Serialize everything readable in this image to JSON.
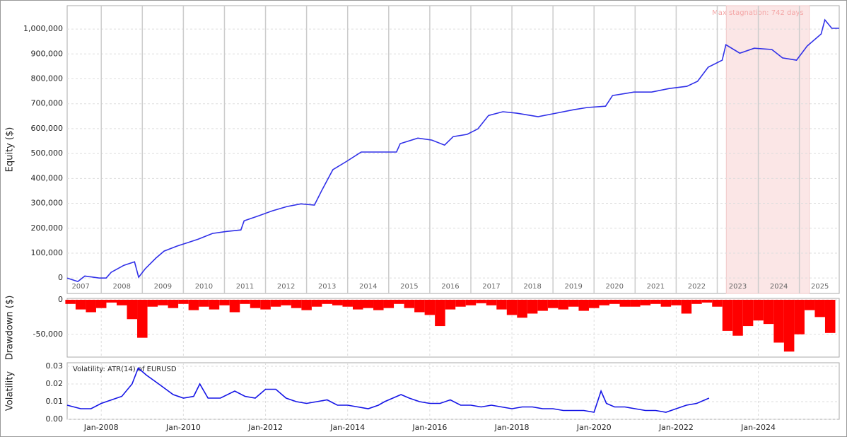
{
  "chart_data": [
    {
      "type": "line",
      "y_label": "Equity ($)",
      "color": "#3030e8",
      "annotation": {
        "text": "Max stagnation: 742 days",
        "start": 2023.22,
        "end": 2025.24,
        "color": "#fbe6e6"
      },
      "xlim": [
        2007.17,
        2025.97
      ],
      "ylim": [
        -62000,
        1094000
      ],
      "yticks": [
        0,
        {
          "value": 100000,
          "label": "100,000"
        },
        {
          "value": 200000,
          "label": "200,000"
        },
        {
          "value": 300000,
          "label": "300,000"
        },
        {
          "value": 400000,
          "label": "400,000"
        },
        {
          "value": 500000,
          "label": "500,000"
        },
        {
          "value": 600000,
          "label": "600,000"
        },
        {
          "value": 700000,
          "label": "700,000"
        },
        {
          "value": 800000,
          "label": "800,000"
        },
        {
          "value": 900000,
          "label": "900,000"
        },
        {
          "value": 1000000,
          "label": "1,000,000"
        }
      ],
      "xticks": [
        {
          "value": 2007.5,
          "label": "2007"
        },
        {
          "value": 2008.5,
          "label": "2008"
        },
        {
          "value": 2009.5,
          "label": "2009"
        },
        {
          "value": 2010.5,
          "label": "2010"
        },
        {
          "value": 2011.5,
          "label": "2011"
        },
        {
          "value": 2012.5,
          "label": "2012"
        },
        {
          "value": 2013.5,
          "label": "2013"
        },
        {
          "value": 2014.5,
          "label": "2014"
        },
        {
          "value": 2015.5,
          "label": "2015"
        },
        {
          "value": 2016.5,
          "label": "2016"
        },
        {
          "value": 2017.5,
          "label": "2017"
        },
        {
          "value": 2018.5,
          "label": "2018"
        },
        {
          "value": 2019.5,
          "label": "2019"
        },
        {
          "value": 2020.5,
          "label": "2020"
        },
        {
          "value": 2021.5,
          "label": "2021"
        },
        {
          "value": 2022.5,
          "label": "2022"
        },
        {
          "value": 2023.5,
          "label": "2023"
        },
        {
          "value": 2024.5,
          "label": "2024"
        },
        {
          "value": 2025.5,
          "label": "2025"
        }
      ],
      "x": [
        2007.17,
        2007.43,
        2007.6,
        2007.95,
        2008.12,
        2008.24,
        2008.55,
        2008.81,
        2008.91,
        2009.07,
        2009.33,
        2009.53,
        2009.84,
        2010.1,
        2010.36,
        2010.71,
        2011.05,
        2011.4,
        2011.48,
        2011.83,
        2012.17,
        2012.52,
        2012.86,
        2013.19,
        2013.38,
        2013.64,
        2013.98,
        2014.33,
        2014.67,
        2015.19,
        2015.28,
        2015.71,
        2016.05,
        2016.36,
        2016.57,
        2016.91,
        2017.17,
        2017.43,
        2017.78,
        2018.12,
        2018.64,
        2019.07,
        2019.5,
        2019.84,
        2020.28,
        2020.45,
        2020.97,
        2021.4,
        2021.83,
        2022.26,
        2022.52,
        2022.78,
        2023.12,
        2023.21,
        2023.55,
        2023.9,
        2024.33,
        2024.59,
        2024.93,
        2025.19,
        2025.53,
        2025.62,
        2025.79,
        2025.97
      ],
      "values": [
        0,
        -14000,
        8000,
        0,
        0,
        23000,
        51000,
        65000,
        3000,
        37000,
        80000,
        108000,
        128000,
        142000,
        156000,
        179000,
        187000,
        193000,
        230000,
        250000,
        270000,
        287000,
        298000,
        293000,
        355000,
        435000,
        469000,
        506000,
        506000,
        506000,
        540000,
        562000,
        554000,
        534000,
        568000,
        577000,
        599000,
        653000,
        668000,
        662000,
        648000,
        662000,
        676000,
        685000,
        690000,
        733000,
        747000,
        747000,
        761000,
        770000,
        790000,
        847000,
        875000,
        937000,
        903000,
        923000,
        918000,
        884000,
        875000,
        932000,
        980000,
        1037000,
        1003000,
        1003000
      ]
    },
    {
      "type": "bar",
      "y_label": "Drawdown ($)",
      "color": "#ff0000",
      "xlim": [
        2007.17,
        2025.97
      ],
      "ylim": [
        -83000,
        2000
      ],
      "yticks": [
        0,
        {
          "value": -50000,
          "label": "-50,000"
        }
      ],
      "x": [
        2007.25,
        2007.5,
        2007.75,
        2008,
        2008.25,
        2008.5,
        2008.75,
        2009,
        2009.25,
        2009.5,
        2009.75,
        2010,
        2010.25,
        2010.5,
        2010.75,
        2011,
        2011.25,
        2011.5,
        2011.75,
        2012,
        2012.25,
        2012.5,
        2012.75,
        2013,
        2013.25,
        2013.5,
        2013.75,
        2014,
        2014.25,
        2014.5,
        2014.75,
        2015,
        2015.25,
        2015.5,
        2015.75,
        2016,
        2016.25,
        2016.5,
        2016.75,
        2017,
        2017.25,
        2017.5,
        2017.75,
        2018,
        2018.25,
        2018.5,
        2018.75,
        2019,
        2019.25,
        2019.5,
        2019.75,
        2020,
        2020.25,
        2020.5,
        2020.75,
        2021,
        2021.25,
        2021.5,
        2021.75,
        2022,
        2022.25,
        2022.5,
        2022.75,
        2023,
        2023.25,
        2023.5,
        2023.75,
        2024,
        2024.25,
        2024.5,
        2024.75,
        2025,
        2025.25,
        2025.5,
        2025.75
      ],
      "values": [
        -6000,
        -14000,
        -18000,
        -12000,
        -4000,
        -8000,
        -28000,
        -55000,
        -10000,
        -8000,
        -12000,
        -6000,
        -15000,
        -10000,
        -14000,
        -8000,
        -18000,
        -6000,
        -12000,
        -14000,
        -10000,
        -8000,
        -12000,
        -15000,
        -10000,
        -6000,
        -8000,
        -10000,
        -14000,
        -12000,
        -15000,
        -12000,
        -6000,
        -12000,
        -18000,
        -22000,
        -38000,
        -14000,
        -10000,
        -8000,
        -5000,
        -8000,
        -14000,
        -22000,
        -26000,
        -20000,
        -16000,
        -12000,
        -14000,
        -10000,
        -16000,
        -12000,
        -8000,
        -6000,
        -10000,
        -10000,
        -8000,
        -6000,
        -10000,
        -8000,
        -20000,
        -6000,
        -4000,
        -10000,
        -45000,
        -52000,
        -38000,
        -30000,
        -35000,
        -62000,
        -75000,
        -50000,
        -15000,
        -25000,
        -48000
      ]
    },
    {
      "type": "line",
      "y_label": "Volatility",
      "title": "Volatility: ATR(14) of EURUSD",
      "color": "#1414e6",
      "xlim": [
        2007.17,
        2025.97
      ],
      "ylim": [
        0,
        0.032
      ],
      "yticks": [
        {
          "value": 0,
          "label": "0.00"
        },
        0.01,
        0.02,
        0.03
      ],
      "xticks": [
        {
          "value": 2008,
          "label": "Jan-2008"
        },
        {
          "value": 2010,
          "label": "Jan-2010"
        },
        {
          "value": 2012,
          "label": "Jan-2012"
        },
        {
          "value": 2014,
          "label": "Jan-2014"
        },
        {
          "value": 2016,
          "label": "Jan-2016"
        },
        {
          "value": 2018,
          "label": "Jan-2018"
        },
        {
          "value": 2020,
          "label": "Jan-2020"
        },
        {
          "value": 2022,
          "label": "Jan-2022"
        },
        {
          "value": 2024,
          "label": "Jan-2024"
        }
      ],
      "x": [
        2007.17,
        2007.5,
        2007.75,
        2008,
        2008.25,
        2008.5,
        2008.75,
        2008.9,
        2009.1,
        2009.4,
        2009.75,
        2010,
        2010.25,
        2010.4,
        2010.6,
        2010.9,
        2011.25,
        2011.5,
        2011.75,
        2012,
        2012.25,
        2012.5,
        2012.75,
        2013,
        2013.25,
        2013.5,
        2013.75,
        2014,
        2014.25,
        2014.5,
        2014.75,
        2014.9,
        2015.3,
        2015.5,
        2015.75,
        2016,
        2016.25,
        2016.5,
        2016.75,
        2017,
        2017.25,
        2017.5,
        2017.75,
        2018,
        2018.25,
        2018.5,
        2018.75,
        2019,
        2019.25,
        2019.5,
        2019.75,
        2020,
        2020.17,
        2020.3,
        2020.5,
        2020.75,
        2021,
        2021.25,
        2021.5,
        2021.75,
        2022,
        2022.25,
        2022.5,
        2022.8
      ],
      "values": [
        0.008,
        0.006,
        0.006,
        0.009,
        0.011,
        0.013,
        0.02,
        0.029,
        0.025,
        0.02,
        0.014,
        0.012,
        0.013,
        0.02,
        0.012,
        0.012,
        0.016,
        0.013,
        0.012,
        0.017,
        0.017,
        0.012,
        0.01,
        0.009,
        0.01,
        0.011,
        0.008,
        0.008,
        0.007,
        0.006,
        0.008,
        0.01,
        0.014,
        0.012,
        0.01,
        0.009,
        0.009,
        0.011,
        0.008,
        0.008,
        0.007,
        0.008,
        0.007,
        0.006,
        0.007,
        0.007,
        0.006,
        0.006,
        0.005,
        0.005,
        0.005,
        0.004,
        0.016,
        0.009,
        0.007,
        0.007,
        0.006,
        0.005,
        0.005,
        0.004,
        0.006,
        0.008,
        0.009,
        0.012
      ]
    }
  ]
}
